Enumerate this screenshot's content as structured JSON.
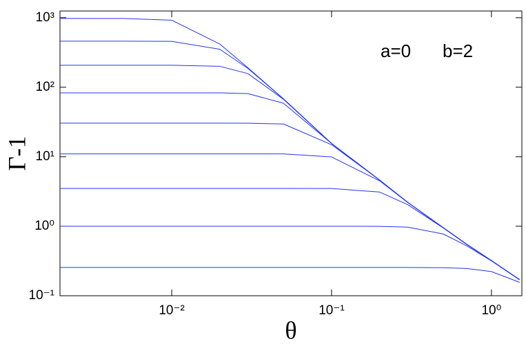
{
  "chart_data": {
    "type": "line",
    "xscale": "log",
    "yscale": "log",
    "x_label": "θ",
    "y_label": "Γ-1",
    "annotations": [
      "a=0",
      "b=2"
    ],
    "color": "#2233ee",
    "x": [
      0.002,
      0.005,
      0.01,
      0.02,
      0.03,
      0.05,
      0.1,
      0.2,
      0.3,
      0.5,
      0.7,
      1,
      1.5
    ],
    "series": [
      {
        "values": [
          977,
          976,
          922,
          418,
          190,
          68,
          15.5,
          4.6,
          2.2,
          0.95,
          0.55,
          0.32,
          0.17
        ]
      },
      {
        "values": [
          460,
          460,
          457,
          352,
          186,
          68,
          15.5,
          4.6,
          2.2,
          0.95,
          0.55,
          0.32,
          0.17
        ]
      },
      {
        "values": [
          207,
          207,
          207,
          200,
          157,
          67,
          15.5,
          4.6,
          2.2,
          0.95,
          0.55,
          0.32,
          0.17
        ]
      },
      {
        "values": [
          83,
          83,
          83,
          83,
          81,
          58.8,
          15.5,
          4.6,
          2.2,
          0.95,
          0.55,
          0.32,
          0.17
        ]
      },
      {
        "values": [
          30.5,
          30.5,
          30.5,
          30.5,
          30.4,
          29.6,
          14.9,
          4.6,
          2.2,
          0.95,
          0.55,
          0.32,
          0.17
        ]
      },
      {
        "values": [
          11,
          11,
          11,
          11,
          11,
          11,
          9.94,
          4.49,
          2.19,
          0.95,
          0.55,
          0.32,
          0.17
        ]
      },
      {
        "values": [
          3.5,
          3.5,
          3.5,
          3.5,
          3.5,
          3.5,
          3.49,
          3.1,
          2.04,
          0.944,
          0.55,
          0.32,
          0.17
        ]
      },
      {
        "values": [
          1.0,
          1.0,
          1.0,
          1.0,
          1.0,
          1.0,
          1.0,
          0.997,
          0.97,
          0.773,
          0.523,
          0.317,
          0.17
        ]
      },
      {
        "values": [
          0.255,
          0.255,
          0.255,
          0.255,
          0.255,
          0.255,
          0.255,
          0.255,
          0.255,
          0.253,
          0.247,
          0.2225,
          0.156
        ]
      }
    ],
    "xlim": [
      0.002,
      1.55
    ],
    "xticks": [
      {
        "value": 0.01,
        "label": "10⁻²"
      },
      {
        "value": 0.1,
        "label": "10⁻¹"
      },
      {
        "value": 1,
        "label": "10⁰"
      }
    ],
    "ylim": [
      0.1,
      1250
    ],
    "yticks": [
      {
        "value": 0.1,
        "label": "10⁻¹"
      },
      {
        "value": 1,
        "label": "10⁰"
      },
      {
        "value": 10,
        "label": "10¹"
      },
      {
        "value": 100,
        "label": "10²"
      },
      {
        "value": 1000,
        "label": "10³"
      }
    ],
    "grid": false
  }
}
